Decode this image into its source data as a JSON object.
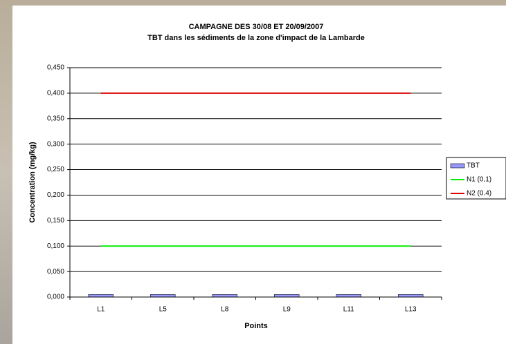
{
  "chart_data": {
    "type": "bar",
    "title": "CAMPAGNE DES 30/08 ET 20/09/2007",
    "subtitle": "TBT dans les sédiments de la zone d'impact de la Lambarde",
    "y_label": "Concentration (mg/kg)",
    "x_label": "Points",
    "categories": [
      "L1",
      "L5",
      "L8",
      "L9",
      "L11",
      "L13"
    ],
    "series": [
      {
        "name": "TBT",
        "type": "bar",
        "color": "#9999ff",
        "values": [
          0.005,
          0.005,
          0.005,
          0.005,
          0.005,
          0.005
        ]
      },
      {
        "name": "N1 (0,1)",
        "type": "line",
        "color": "#00ee00",
        "values": [
          0.1,
          0.1,
          0.1,
          0.1,
          0.1,
          0.1
        ]
      },
      {
        "name": "N2 (0.4)",
        "type": "line",
        "color": "#dd0000",
        "values": [
          0.4,
          0.4,
          0.4,
          0.4,
          0.4,
          0.4
        ]
      }
    ],
    "ylim": [
      0,
      0.45
    ],
    "yticks": [
      {
        "value": 0,
        "label": "0,000"
      },
      {
        "value": 0.05,
        "label": "0,050"
      },
      {
        "value": 0.1,
        "label": "0,100"
      },
      {
        "value": 0.15,
        "label": "0,150"
      },
      {
        "value": 0.2,
        "label": "0,200"
      },
      {
        "value": 0.25,
        "label": "0,250"
      },
      {
        "value": 0.3,
        "label": "0,300"
      },
      {
        "value": 0.35,
        "label": "0,350"
      },
      {
        "value": 0.4,
        "label": "0,400"
      },
      {
        "value": 0.45,
        "label": "0,450"
      }
    ],
    "grid": true,
    "legend": "right"
  }
}
